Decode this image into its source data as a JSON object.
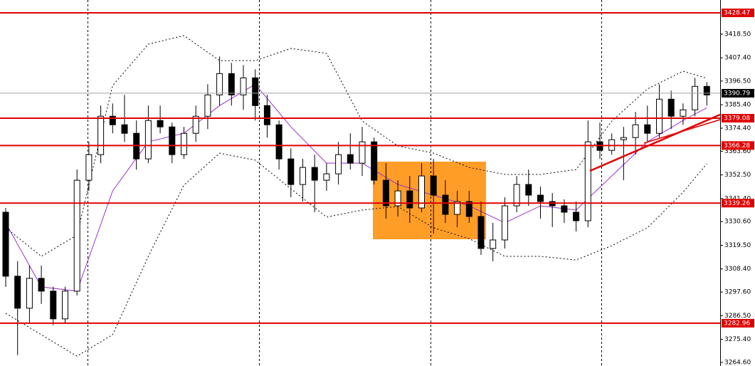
{
  "chart_data": {
    "type": "candlestick",
    "up_color": "#ffffff",
    "down_color": "#000000",
    "open": [
      3335,
      3305,
      3290,
      3304,
      3298,
      3285,
      3298,
      3350,
      3362,
      3380,
      3376,
      3372,
      3360,
      3378,
      3375,
      3362,
      3372,
      3380,
      3390,
      3400,
      3390,
      3398,
      3385,
      3376,
      3360,
      3348,
      3356,
      3350,
      3353,
      3362,
      3358,
      3368,
      3350,
      3338,
      3345,
      3337,
      3352,
      3343,
      3334,
      3340,
      3333,
      3318,
      3322,
      3338,
      3348,
      3343,
      3340,
      3338,
      3335,
      3331,
      3368,
      3364,
      3369,
      3370,
      3376,
      3372,
      3388,
      3380,
      3383,
      3394
    ],
    "high": [
      3337,
      3312,
      3310,
      3310,
      3300,
      3300,
      3355,
      3368,
      3385,
      3386,
      3390,
      3378,
      3385,
      3385,
      3377,
      3375,
      3385,
      3395,
      3408,
      3405,
      3404,
      3402,
      3390,
      3378,
      3365,
      3360,
      3362,
      3358,
      3368,
      3372,
      3375,
      3370,
      3358,
      3350,
      3352,
      3358,
      3360,
      3350,
      3345,
      3345,
      3340,
      3330,
      3342,
      3352,
      3355,
      3347,
      3344,
      3341,
      3340,
      3378,
      3377,
      3372,
      3375,
      3382,
      3385,
      3395,
      3392,
      3386,
      3398,
      3396
    ],
    "low": [
      3300,
      3268,
      3283,
      3292,
      3282,
      3283,
      3296,
      3345,
      3358,
      3372,
      3368,
      3355,
      3358,
      3372,
      3358,
      3360,
      3368,
      3374,
      3385,
      3385,
      3383,
      3378,
      3370,
      3355,
      3342,
      3340,
      3335,
      3345,
      3348,
      3355,
      3352,
      3348,
      3332,
      3333,
      3330,
      3335,
      3325,
      3330,
      3328,
      3330,
      3315,
      3312,
      3318,
      3335,
      3338,
      3332,
      3328,
      3330,
      3326,
      3328,
      3360,
      3362,
      3350,
      3362,
      3368,
      3370,
      3374,
      3376,
      3380,
      3385
    ],
    "close": [
      3305,
      3290,
      3304,
      3298,
      3285,
      3298,
      3350,
      3362,
      3380,
      3376,
      3372,
      3360,
      3378,
      3375,
      3362,
      3372,
      3380,
      3390,
      3400,
      3390,
      3398,
      3385,
      3376,
      3360,
      3348,
      3356,
      3350,
      3353,
      3362,
      3358,
      3368,
      3350,
      3338,
      3345,
      3337,
      3352,
      3343,
      3334,
      3340,
      3333,
      3318,
      3322,
      3338,
      3348,
      3343,
      3340,
      3338,
      3335,
      3331,
      3368,
      3364,
      3369,
      3370,
      3376,
      3372,
      3388,
      3380,
      3383,
      3394,
      3390
    ],
    "bands": {
      "x": [
        0,
        3,
        6,
        9,
        12,
        15,
        18,
        21,
        24,
        27,
        30,
        33,
        36,
        39,
        42,
        45,
        48,
        51,
        54,
        57,
        59
      ],
      "upper": [
        3327.7,
        3314.3,
        3324.3,
        3394.4,
        3413.8,
        3417.8,
        3406.1,
        3406.1,
        3411.8,
        3409.5,
        3377.7,
        3366.1,
        3362.7,
        3356.0,
        3352.7,
        3352.7,
        3355.0,
        3377.7,
        3392.8,
        3401.1,
        3397.8
      ],
      "lower": [
        3287.6,
        3277.6,
        3267.5,
        3277.6,
        3314.3,
        3347.7,
        3362.7,
        3359.4,
        3346.0,
        3332.7,
        3336.0,
        3337.7,
        3327.7,
        3322.6,
        3314.3,
        3314.3,
        3312.6,
        3319.3,
        3327.7,
        3344.4,
        3357.7
      ],
      "ma": [
        3330,
        3300,
        3298,
        3345,
        3368,
        3372,
        3385,
        3395,
        3375,
        3358,
        3358,
        3348,
        3343,
        3338,
        3330,
        3338,
        3336,
        3352,
        3368,
        3378,
        3384
      ],
      "ma_color": "#9b30d0"
    },
    "ylim": [
      3262.9,
      3434.5
    ],
    "yticks": [
      {
        "value": 3418.5,
        "label": "3418.50"
      },
      {
        "value": 3407.4,
        "label": "3407.40"
      },
      {
        "value": 3396.5,
        "label": "3396.50"
      },
      {
        "value": 3385.4,
        "label": "3385.40"
      },
      {
        "value": 3374.4,
        "label": "3374.40"
      },
      {
        "value": 3363.6,
        "label": "3363.60"
      },
      {
        "value": 3352.5,
        "label": "3352.50"
      },
      {
        "value": 3341.4,
        "label": "3341.40"
      },
      {
        "value": 3330.6,
        "label": "3330.60"
      },
      {
        "value": 3319.5,
        "label": "3319.50"
      },
      {
        "value": 3308.4,
        "label": "3308.40"
      },
      {
        "value": 3297.6,
        "label": "3297.60"
      },
      {
        "value": 3286.5,
        "label": "3286.50"
      },
      {
        "value": 3275.4,
        "label": "3275.40"
      },
      {
        "value": 3264.6,
        "label": "3264.60"
      }
    ],
    "levels": [
      {
        "value": 3428.47,
        "color": "#e00000"
      },
      {
        "value": 3390.79,
        "color": "#000000",
        "line_color": "#9aa4a8"
      },
      {
        "value": 3379.08,
        "color": "#e00000"
      },
      {
        "value": 3366.28,
        "color": "#e00000"
      },
      {
        "value": 3339.26,
        "color": "#e00000"
      },
      {
        "value": 3282.96,
        "color": "#e00000"
      }
    ]
  }
}
